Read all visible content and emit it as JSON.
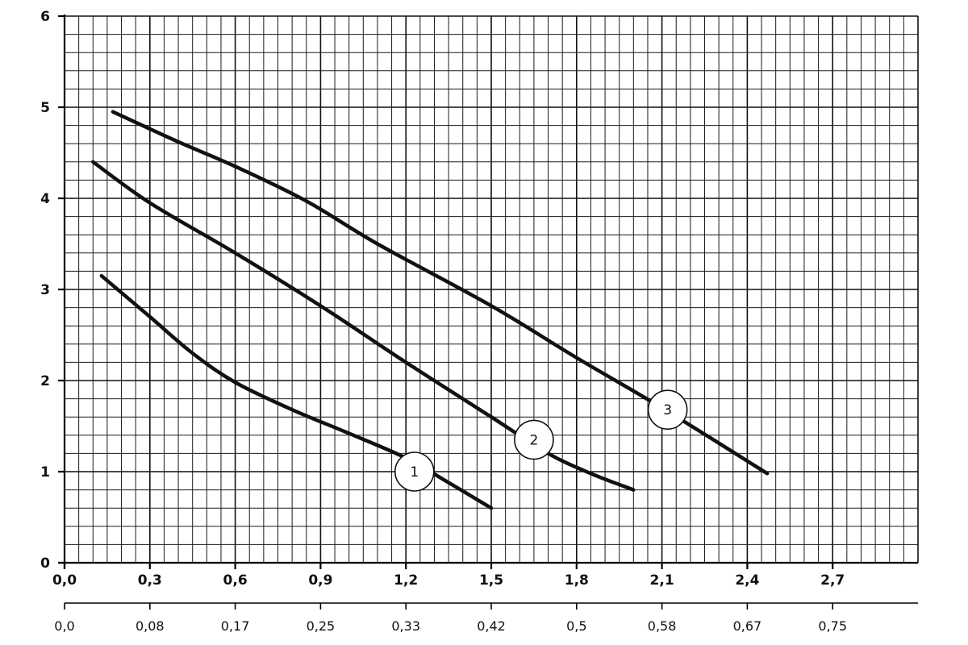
{
  "chart_data": {
    "type": "line",
    "x_axis": {
      "range": [
        0.0,
        3.0
      ],
      "ticks": [
        0.0,
        0.3,
        0.6,
        0.9,
        1.2,
        1.5,
        1.8,
        2.1,
        2.4,
        2.7
      ],
      "tick_labels": [
        "0,0",
        "0,3",
        "0,6",
        "0,9",
        "1,2",
        "1,5",
        "1,8",
        "2,1",
        "2,4",
        "2,7"
      ]
    },
    "secondary_x_axis": {
      "tick_labels": [
        "0,0",
        "0,08",
        "0,17",
        "0,25",
        "0,33",
        "0,42",
        "0,5",
        "0,58",
        "0,67",
        "0,75"
      ]
    },
    "y_axis": {
      "range": [
        0,
        6
      ],
      "ticks": [
        0,
        1,
        2,
        3,
        4,
        5,
        6
      ],
      "tick_labels": [
        "0",
        "1",
        "2",
        "3",
        "4",
        "5",
        "6"
      ]
    },
    "grid": true,
    "series": [
      {
        "name": "1",
        "points": [
          [
            0.13,
            3.15
          ],
          [
            0.3,
            2.7
          ],
          [
            0.45,
            2.3
          ],
          [
            0.6,
            1.98
          ],
          [
            0.8,
            1.68
          ],
          [
            1.0,
            1.42
          ],
          [
            1.2,
            1.15
          ],
          [
            1.35,
            0.88
          ],
          [
            1.5,
            0.6
          ]
        ],
        "label_at": [
          1.23,
          1.0
        ]
      },
      {
        "name": "2",
        "points": [
          [
            0.1,
            4.4
          ],
          [
            0.3,
            3.95
          ],
          [
            0.6,
            3.4
          ],
          [
            0.9,
            2.82
          ],
          [
            1.2,
            2.2
          ],
          [
            1.5,
            1.6
          ],
          [
            1.7,
            1.2
          ],
          [
            1.85,
            0.98
          ],
          [
            2.0,
            0.8
          ]
        ],
        "label_at": [
          1.65,
          1.35
        ]
      },
      {
        "name": "3",
        "points": [
          [
            0.17,
            4.95
          ],
          [
            0.4,
            4.62
          ],
          [
            0.6,
            4.35
          ],
          [
            0.85,
            3.97
          ],
          [
            1.1,
            3.5
          ],
          [
            1.5,
            2.82
          ],
          [
            1.8,
            2.25
          ],
          [
            2.1,
            1.7
          ],
          [
            2.47,
            0.98
          ]
        ],
        "label_at": [
          2.12,
          1.68
        ]
      }
    ]
  }
}
